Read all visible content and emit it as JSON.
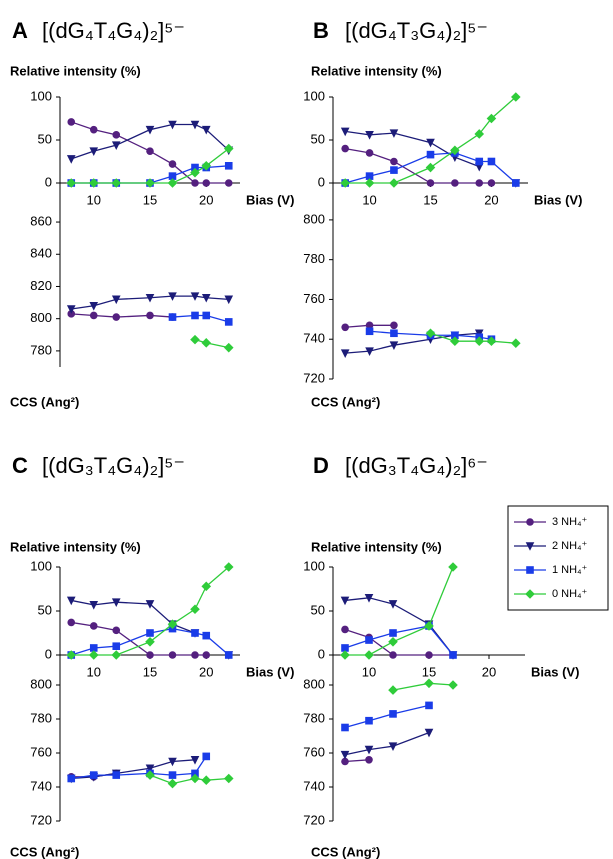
{
  "chart_data": [
    {
      "type": "line",
      "label": "A",
      "title": "[(dG₄T₄G₄)₂]⁵⁻",
      "xlabel": "Bias (V)",
      "xlim": [
        7,
        23
      ],
      "xticks": [
        10,
        15,
        20
      ],
      "ylabel": "Relative intensity (%)",
      "ylim": [
        0,
        100
      ],
      "yticks": [
        0,
        50,
        100
      ],
      "x": [
        8,
        10,
        12,
        15,
        17,
        19,
        20,
        22
      ],
      "series": [
        {
          "color": "#54207f",
          "marker": "circle",
          "values": [
            71,
            62,
            56,
            37,
            22,
            0,
            0,
            0
          ]
        },
        {
          "color": "#1c1c78",
          "marker": "triangle-down",
          "values": [
            28,
            37,
            44,
            62,
            68,
            68,
            62,
            38
          ]
        },
        {
          "color": "#1a3ce8",
          "marker": "square",
          "values": [
            0,
            0,
            0,
            0,
            8,
            18,
            18,
            20
          ]
        },
        {
          "color": "#2fcc3a",
          "marker": "diamond",
          "values": [
            0,
            0,
            0,
            0,
            0,
            12,
            20,
            40
          ]
        }
      ],
      "ccs": {
        "ylabel": "CCS (Ang²)",
        "ylim": [
          770,
          865
        ],
        "yticks": [
          780,
          800,
          820,
          840,
          860
        ],
        "series": [
          {
            "color": "#54207f",
            "marker": "circle",
            "values": [
              803,
              802,
              801,
              802,
              801,
              null,
              null,
              null
            ]
          },
          {
            "color": "#1c1c78",
            "marker": "triangle-down",
            "values": [
              806,
              808,
              812,
              813,
              814,
              814,
              813,
              812
            ]
          },
          {
            "color": "#1a3ce8",
            "marker": "square",
            "values": [
              null,
              null,
              null,
              null,
              801,
              802,
              802,
              798
            ]
          },
          {
            "color": "#2fcc3a",
            "marker": "diamond",
            "values": [
              null,
              null,
              null,
              null,
              null,
              787,
              785,
              782
            ]
          }
        ]
      }
    },
    {
      "type": "line",
      "label": "B",
      "title": "[(dG₄T₃G₄)₂]⁵⁻",
      "xlabel": "Bias (V)",
      "xlim": [
        7,
        23
      ],
      "xticks": [
        10,
        15,
        20
      ],
      "ylabel": "Relative intensity (%)",
      "ylim": [
        0,
        100
      ],
      "yticks": [
        0,
        50,
        100
      ],
      "x": [
        8,
        10,
        12,
        15,
        17,
        19,
        20,
        22
      ],
      "series": [
        {
          "color": "#54207f",
          "marker": "circle",
          "values": [
            40,
            35,
            25,
            0,
            0,
            0,
            0,
            null
          ]
        },
        {
          "color": "#1c1c78",
          "marker": "triangle-down",
          "values": [
            60,
            56,
            58,
            47,
            30,
            19,
            null,
            0
          ]
        },
        {
          "color": "#1a3ce8",
          "marker": "square",
          "values": [
            0,
            8,
            15,
            33,
            35,
            25,
            25,
            0
          ]
        },
        {
          "color": "#2fcc3a",
          "marker": "diamond",
          "values": [
            0,
            0,
            0,
            18,
            38,
            57,
            75,
            100
          ]
        }
      ],
      "ccs": {
        "ylabel": "CCS (Ang²)",
        "ylim": [
          720,
          810
        ],
        "yticks": [
          720,
          740,
          760,
          780,
          800
        ],
        "series": [
          {
            "color": "#54207f",
            "marker": "circle",
            "values": [
              746,
              747,
              747,
              null,
              null,
              null,
              null,
              null
            ]
          },
          {
            "color": "#1c1c78",
            "marker": "triangle-down",
            "values": [
              733,
              734,
              737,
              740,
              742,
              743,
              null,
              null
            ]
          },
          {
            "color": "#1a3ce8",
            "marker": "square",
            "values": [
              null,
              744,
              743,
              742,
              742,
              741,
              740,
              null
            ]
          },
          {
            "color": "#2fcc3a",
            "marker": "diamond",
            "values": [
              null,
              null,
              null,
              743,
              739,
              739,
              739,
              738
            ]
          }
        ]
      }
    },
    {
      "type": "line",
      "label": "C",
      "title": "[(dG₃T₄G₄)₂]⁵⁻",
      "xlabel": "Bias (V)",
      "xlim": [
        7,
        23
      ],
      "xticks": [
        10,
        15,
        20
      ],
      "ylabel": "Relative intensity (%)",
      "ylim": [
        0,
        100
      ],
      "yticks": [
        0,
        50,
        100
      ],
      "x": [
        8,
        10,
        12,
        15,
        17,
        19,
        20,
        22
      ],
      "series": [
        {
          "color": "#54207f",
          "marker": "circle",
          "values": [
            37,
            33,
            28,
            0,
            0,
            0,
            0,
            null
          ]
        },
        {
          "color": "#1c1c78",
          "marker": "triangle-down",
          "values": [
            62,
            57,
            60,
            58,
            35,
            25,
            null,
            0
          ]
        },
        {
          "color": "#1a3ce8",
          "marker": "square",
          "values": [
            0,
            8,
            10,
            25,
            30,
            25,
            22,
            0
          ]
        },
        {
          "color": "#2fcc3a",
          "marker": "diamond",
          "values": [
            0,
            0,
            0,
            15,
            35,
            52,
            78,
            100
          ]
        }
      ],
      "ccs": {
        "ylabel": "CCS (Ang²)",
        "ylim": [
          720,
          810
        ],
        "yticks": [
          720,
          740,
          760,
          780,
          800
        ],
        "series": [
          {
            "color": "#54207f",
            "marker": "circle",
            "values": [
              746,
              746,
              748,
              null,
              null,
              null,
              null,
              null
            ]
          },
          {
            "color": "#1c1c78",
            "marker": "triangle-down",
            "values": [
              745,
              746,
              748,
              751,
              755,
              756,
              null,
              null
            ]
          },
          {
            "color": "#1a3ce8",
            "marker": "square",
            "values": [
              745,
              747,
              747,
              748,
              747,
              748,
              758,
              null
            ]
          },
          {
            "color": "#2fcc3a",
            "marker": "diamond",
            "values": [
              null,
              null,
              null,
              747,
              742,
              745,
              744,
              745
            ]
          }
        ]
      }
    },
    {
      "type": "line",
      "label": "D",
      "title": "[(dG₃T₄G₄)₂]⁶⁻",
      "xlabel": "Bias (V)",
      "xlim": [
        7,
        23
      ],
      "xticks": [
        10,
        15,
        20
      ],
      "ylabel": "Relative intensity (%)",
      "ylim": [
        0,
        100
      ],
      "yticks": [
        0,
        50,
        100
      ],
      "x": [
        8,
        10,
        12,
        15,
        17
      ],
      "series": [
        {
          "name": "3 NH₄⁺",
          "color": "#54207f",
          "marker": "circle",
          "values": [
            29,
            20,
            0,
            0,
            0
          ]
        },
        {
          "name": "2 NH₄⁺",
          "color": "#1c1c78",
          "marker": "triangle-down",
          "values": [
            62,
            65,
            58,
            35,
            0
          ]
        },
        {
          "name": "1 NH₄⁺",
          "color": "#1a3ce8",
          "marker": "square",
          "values": [
            8,
            17,
            25,
            33,
            0
          ]
        },
        {
          "name": "0 NH₄⁺",
          "color": "#2fcc3a",
          "marker": "diamond",
          "values": [
            0,
            0,
            15,
            33,
            100
          ]
        }
      ],
      "ccs": {
        "ylabel": "CCS (Ang²)",
        "ylim": [
          720,
          810
        ],
        "yticks": [
          720,
          740,
          760,
          780,
          800
        ],
        "series": [
          {
            "color": "#54207f",
            "marker": "circle",
            "values": [
              755,
              756,
              null,
              null,
              null
            ]
          },
          {
            "color": "#1c1c78",
            "marker": "triangle-down",
            "values": [
              759,
              762,
              764,
              772,
              null
            ]
          },
          {
            "color": "#1a3ce8",
            "marker": "square",
            "values": [
              775,
              779,
              783,
              788,
              null
            ]
          },
          {
            "color": "#2fcc3a",
            "marker": "diamond",
            "values": [
              null,
              null,
              797,
              801,
              800
            ]
          }
        ]
      }
    }
  ]
}
